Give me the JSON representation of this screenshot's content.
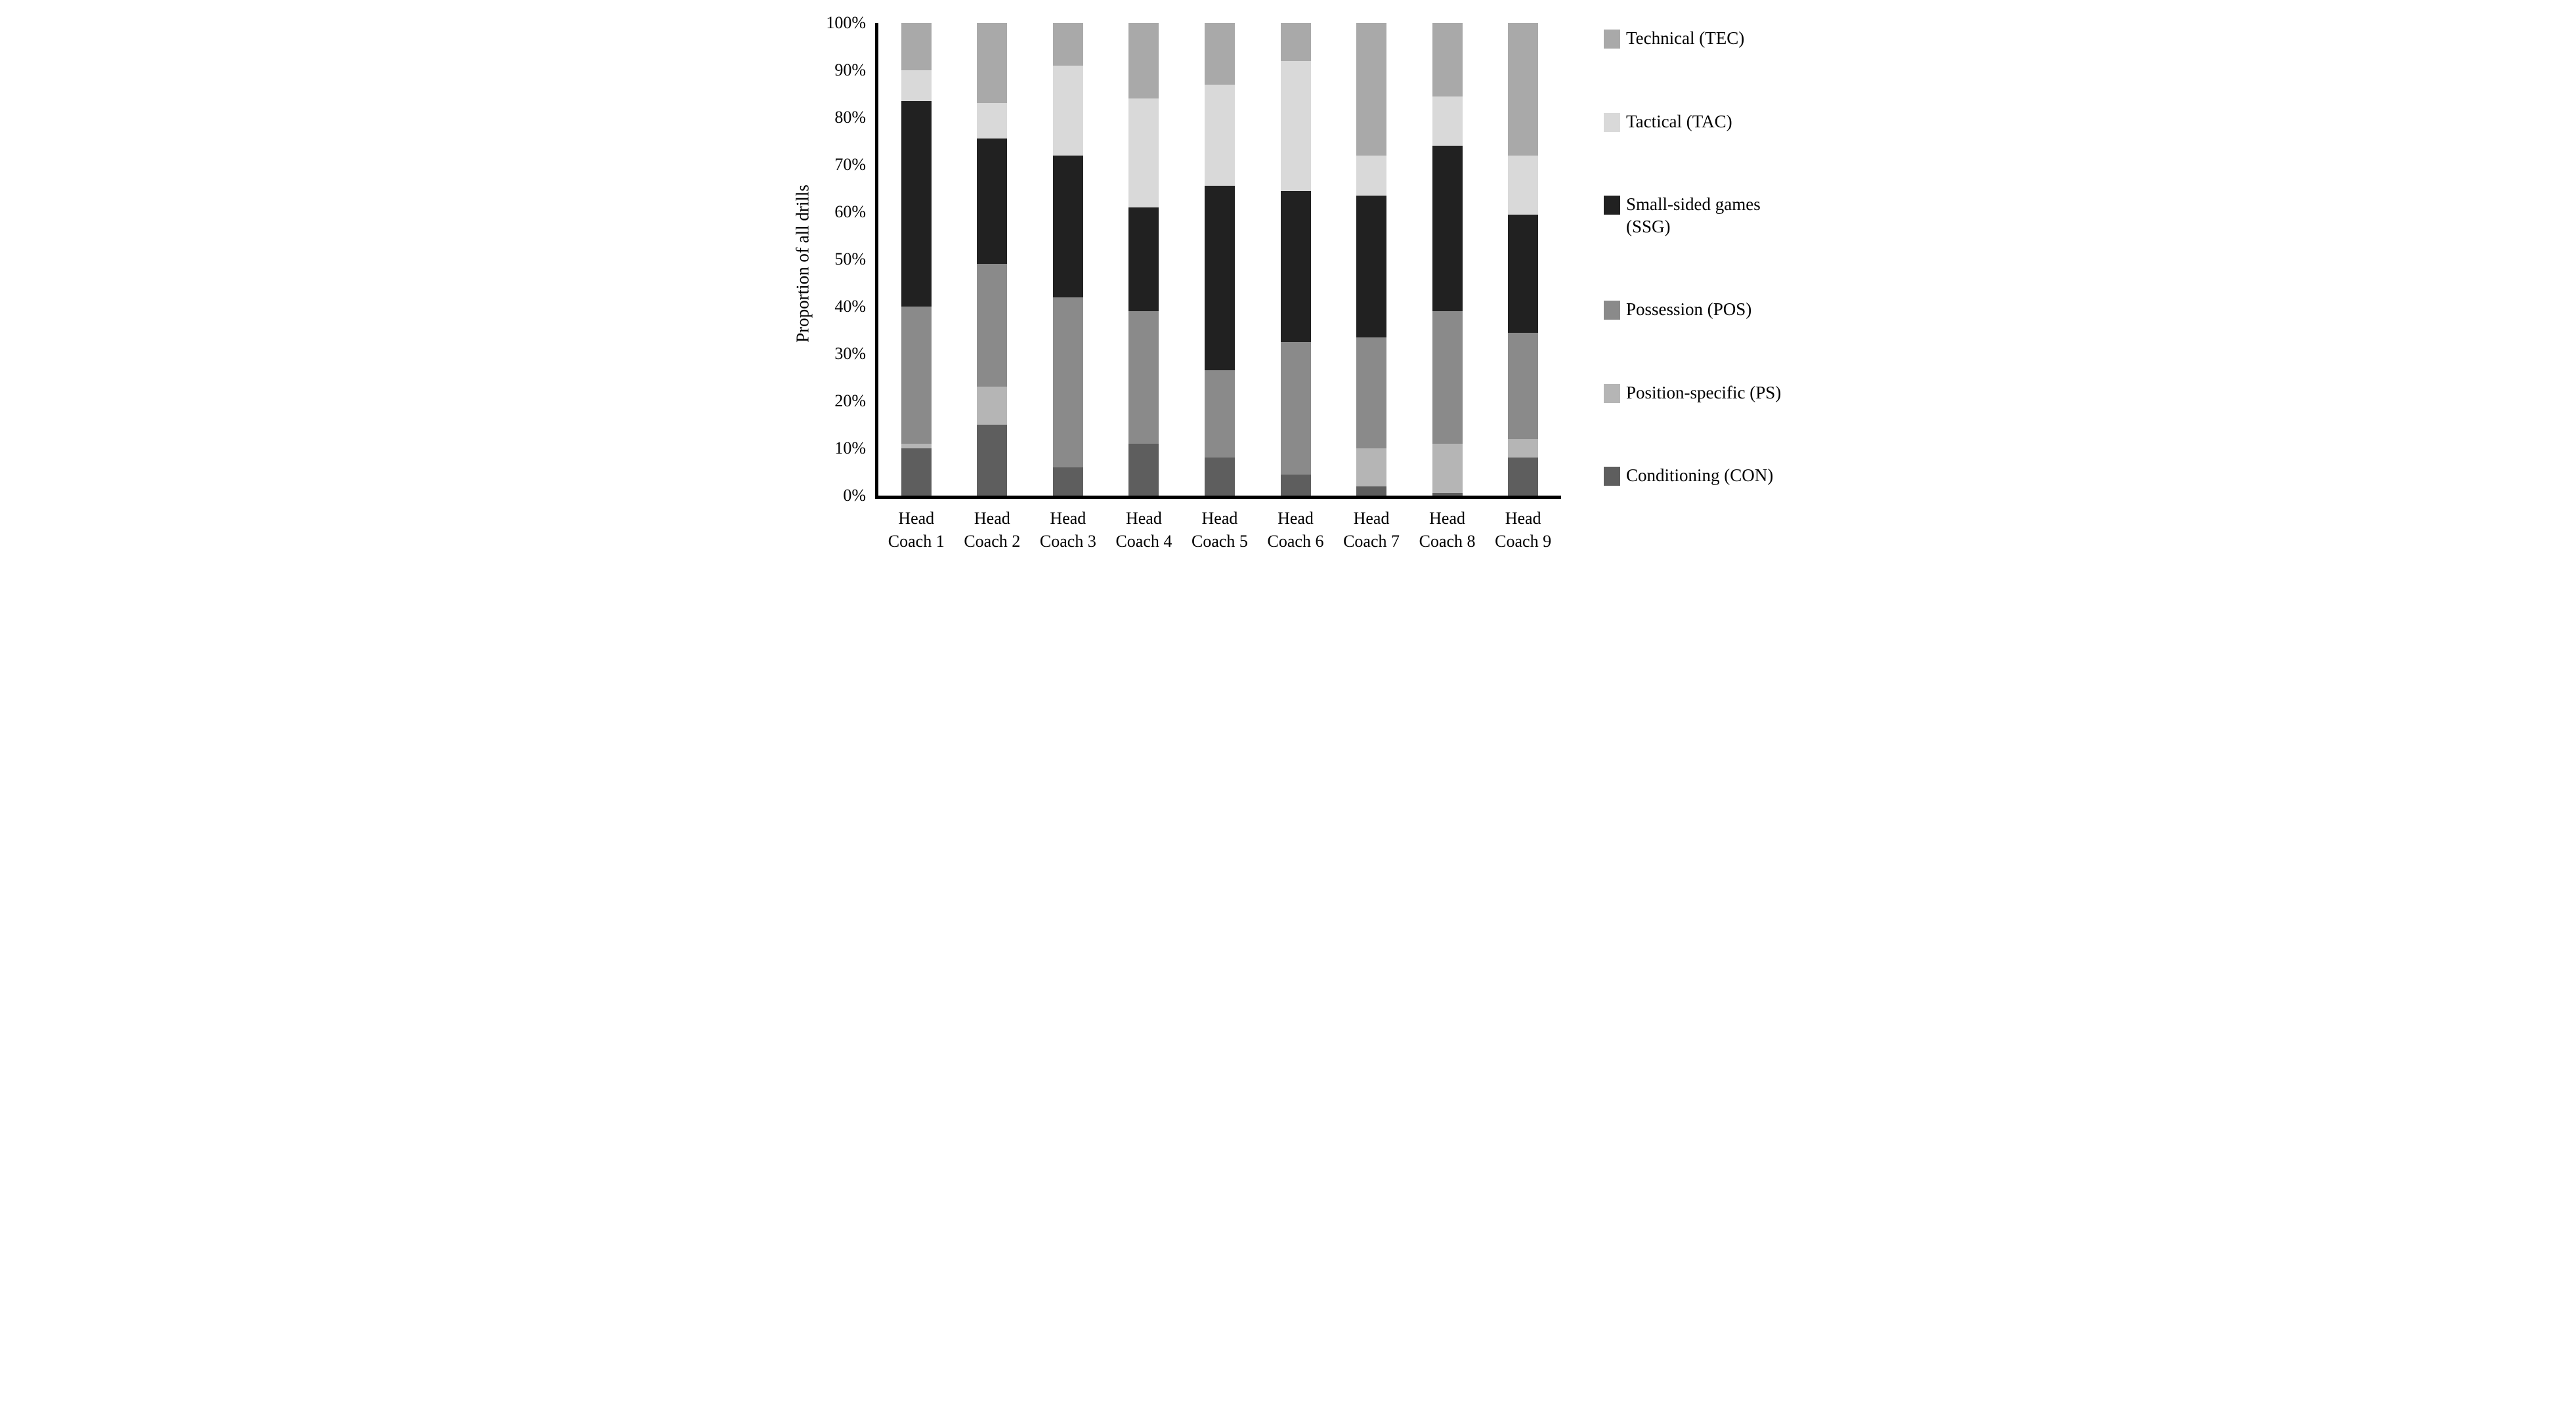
{
  "figure": {
    "background": "#ffffff",
    "axis_color": "#000000"
  },
  "chart_data": {
    "type": "bar",
    "stacked": true,
    "percent_stacked": true,
    "title": "",
    "xlabel": "",
    "ylabel": "Proportion of all drills",
    "ylim": [
      0,
      100
    ],
    "grid": false,
    "y_ticks": [
      "0%",
      "10%",
      "20%",
      "30%",
      "40%",
      "50%",
      "60%",
      "70%",
      "80%",
      "90%",
      "100%"
    ],
    "categories": [
      "Head Coach 1",
      "Head Coach 2",
      "Head Coach 3",
      "Head Coach 4",
      "Head Coach 5",
      "Head Coach 6",
      "Head Coach 7",
      "Head Coach 8",
      "Head Coach 9"
    ],
    "series": [
      {
        "name": "Conditioning (CON)",
        "color": "#5e5e5e",
        "values": [
          10,
          15,
          6,
          11,
          8,
          4.5,
          2,
          0.5,
          8
        ]
      },
      {
        "name": "Position-specific (PS)",
        "color": "#b5b5b5",
        "values": [
          1,
          8,
          0,
          0,
          0,
          0,
          8,
          10.5,
          4
        ]
      },
      {
        "name": "Possession (POS)",
        "color": "#8a8a8a",
        "values": [
          29,
          26,
          36,
          28,
          18.5,
          28,
          23.5,
          28,
          22.5
        ]
      },
      {
        "name": "Small-sided games (SSG)",
        "color": "#212121",
        "values": [
          43.5,
          26.5,
          30,
          22,
          39,
          32,
          30,
          35,
          25
        ]
      },
      {
        "name": "Tactical (TAC)",
        "color": "#d9d9d9",
        "values": [
          6.5,
          7.5,
          19,
          23,
          21.5,
          27.5,
          8.5,
          10.5,
          12.5
        ]
      },
      {
        "name": "Technical (TEC)",
        "color": "#a9a9a9",
        "values": [
          10,
          17,
          9,
          16,
          13,
          8,
          28,
          15.5,
          28
        ]
      }
    ],
    "legend_position": "right",
    "legend_order": [
      "Technical (TEC)",
      "Tactical (TAC)",
      "Small-sided games (SSG)",
      "Possession (POS)",
      "Position-specific (PS)",
      "Conditioning (CON)"
    ]
  }
}
